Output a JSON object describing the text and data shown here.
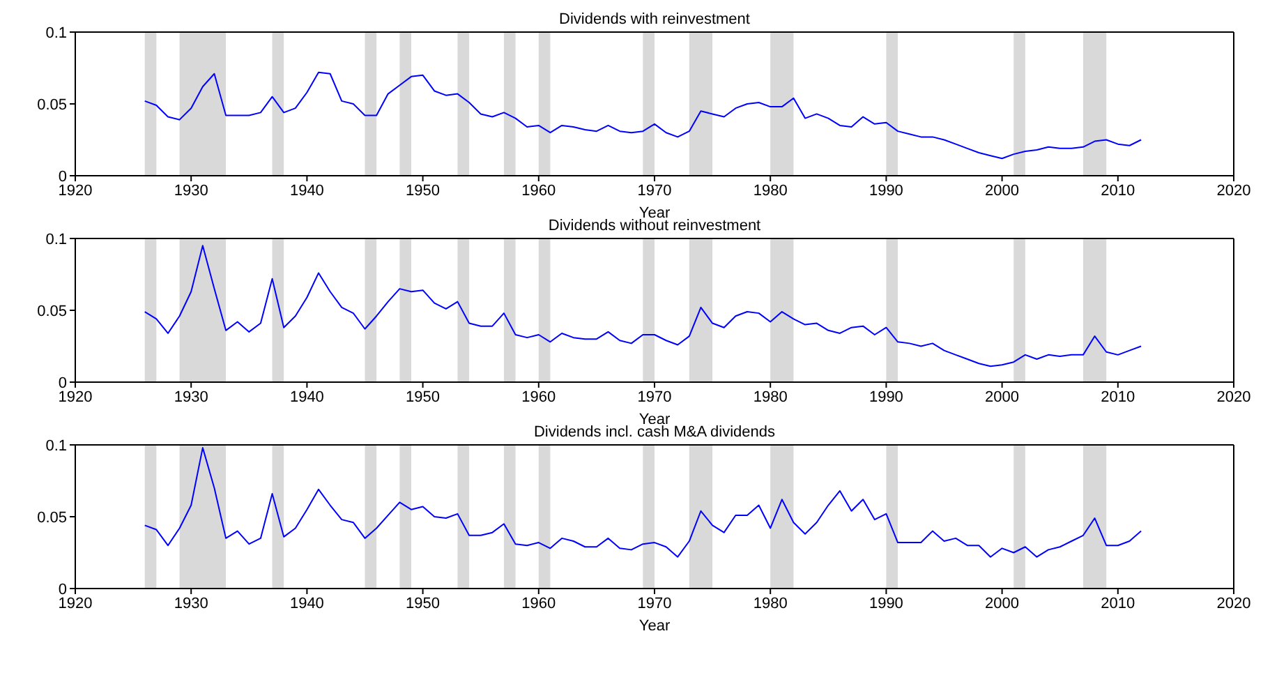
{
  "chart_data": [
    {
      "type": "line",
      "title": "Dividends with reinvestment",
      "xlabel": "Year",
      "xlim": [
        1920,
        2020
      ],
      "xticks": [
        1920,
        1930,
        1940,
        1950,
        1960,
        1970,
        1980,
        1990,
        2000,
        2010,
        2020
      ],
      "ylim": [
        0,
        0.1
      ],
      "yticks": [
        0,
        0.05,
        0.1
      ],
      "grid": false,
      "legend": false,
      "x": [
        1926,
        1927,
        1928,
        1929,
        1930,
        1931,
        1932,
        1933,
        1934,
        1935,
        1936,
        1937,
        1938,
        1939,
        1940,
        1941,
        1942,
        1943,
        1944,
        1945,
        1946,
        1947,
        1948,
        1949,
        1950,
        1951,
        1952,
        1953,
        1954,
        1955,
        1956,
        1957,
        1958,
        1959,
        1960,
        1961,
        1962,
        1963,
        1964,
        1965,
        1966,
        1967,
        1968,
        1969,
        1970,
        1971,
        1972,
        1973,
        1974,
        1975,
        1976,
        1977,
        1978,
        1979,
        1980,
        1981,
        1982,
        1983,
        1984,
        1985,
        1986,
        1987,
        1988,
        1989,
        1990,
        1991,
        1992,
        1993,
        1994,
        1995,
        1996,
        1997,
        1998,
        1999,
        2000,
        2001,
        2002,
        2003,
        2004,
        2005,
        2006,
        2007,
        2008,
        2009,
        2010,
        2011,
        2012
      ],
      "series": [
        {
          "color": "#0000ff",
          "values": [
            0.052,
            0.049,
            0.041,
            0.039,
            0.047,
            0.062,
            0.071,
            0.042,
            0.042,
            0.042,
            0.044,
            0.055,
            0.044,
            0.047,
            0.058,
            0.072,
            0.071,
            0.052,
            0.05,
            0.042,
            0.042,
            0.057,
            0.063,
            0.069,
            0.07,
            0.059,
            0.056,
            0.057,
            0.051,
            0.043,
            0.041,
            0.044,
            0.04,
            0.034,
            0.035,
            0.03,
            0.035,
            0.034,
            0.032,
            0.031,
            0.035,
            0.031,
            0.03,
            0.031,
            0.036,
            0.03,
            0.027,
            0.031,
            0.045,
            0.043,
            0.041,
            0.047,
            0.05,
            0.051,
            0.048,
            0.048,
            0.054,
            0.04,
            0.043,
            0.04,
            0.035,
            0.034,
            0.041,
            0.036,
            0.037,
            0.031,
            0.029,
            0.027,
            0.027,
            0.025,
            0.022,
            0.019,
            0.016,
            0.014,
            0.012,
            0.015,
            0.017,
            0.018,
            0.02,
            0.019,
            0.019,
            0.02,
            0.024,
            0.025,
            0.022,
            0.021,
            0.025
          ]
        }
      ],
      "bands": [
        {
          "axis": "x",
          "from": 1926,
          "to": 1927,
          "color": "#d9d9d9"
        },
        {
          "axis": "x",
          "from": 1929,
          "to": 1933,
          "color": "#d9d9d9"
        },
        {
          "axis": "x",
          "from": 1937,
          "to": 1938,
          "color": "#d9d9d9"
        },
        {
          "axis": "x",
          "from": 1945,
          "to": 1946,
          "color": "#d9d9d9"
        },
        {
          "axis": "x",
          "from": 1948,
          "to": 1949,
          "color": "#d9d9d9"
        },
        {
          "axis": "x",
          "from": 1953,
          "to": 1954,
          "color": "#d9d9d9"
        },
        {
          "axis": "x",
          "from": 1957,
          "to": 1958,
          "color": "#d9d9d9"
        },
        {
          "axis": "x",
          "from": 1960,
          "to": 1961,
          "color": "#d9d9d9"
        },
        {
          "axis": "x",
          "from": 1969,
          "to": 1970,
          "color": "#d9d9d9"
        },
        {
          "axis": "x",
          "from": 1973,
          "to": 1975,
          "color": "#d9d9d9"
        },
        {
          "axis": "x",
          "from": 1980,
          "to": 1982,
          "color": "#d9d9d9"
        },
        {
          "axis": "x",
          "from": 1990,
          "to": 1991,
          "color": "#d9d9d9"
        },
        {
          "axis": "x",
          "from": 2001,
          "to": 2002,
          "color": "#d9d9d9"
        },
        {
          "axis": "x",
          "from": 2007,
          "to": 2009,
          "color": "#d9d9d9"
        }
      ]
    },
    {
      "type": "line",
      "title": "Dividends without reinvestment",
      "xlabel": "Year",
      "xlim": [
        1920,
        2020
      ],
      "xticks": [
        1920,
        1930,
        1940,
        1950,
        1960,
        1970,
        1980,
        1990,
        2000,
        2010,
        2020
      ],
      "ylim": [
        0,
        0.1
      ],
      "yticks": [
        0,
        0.05,
        0.1
      ],
      "grid": false,
      "legend": false,
      "x": [
        1926,
        1927,
        1928,
        1929,
        1930,
        1931,
        1932,
        1933,
        1934,
        1935,
        1936,
        1937,
        1938,
        1939,
        1940,
        1941,
        1942,
        1943,
        1944,
        1945,
        1946,
        1947,
        1948,
        1949,
        1950,
        1951,
        1952,
        1953,
        1954,
        1955,
        1956,
        1957,
        1958,
        1959,
        1960,
        1961,
        1962,
        1963,
        1964,
        1965,
        1966,
        1967,
        1968,
        1969,
        1970,
        1971,
        1972,
        1973,
        1974,
        1975,
        1976,
        1977,
        1978,
        1979,
        1980,
        1981,
        1982,
        1983,
        1984,
        1985,
        1986,
        1987,
        1988,
        1989,
        1990,
        1991,
        1992,
        1993,
        1994,
        1995,
        1996,
        1997,
        1998,
        1999,
        2000,
        2001,
        2002,
        2003,
        2004,
        2005,
        2006,
        2007,
        2008,
        2009,
        2010,
        2011,
        2012
      ],
      "series": [
        {
          "color": "#0000ff",
          "values": [
            0.049,
            0.044,
            0.034,
            0.046,
            0.063,
            0.095,
            0.065,
            0.036,
            0.042,
            0.035,
            0.041,
            0.072,
            0.038,
            0.046,
            0.059,
            0.076,
            0.063,
            0.052,
            0.048,
            0.037,
            0.046,
            0.056,
            0.065,
            0.063,
            0.064,
            0.055,
            0.051,
            0.056,
            0.041,
            0.039,
            0.039,
            0.048,
            0.033,
            0.031,
            0.033,
            0.028,
            0.034,
            0.031,
            0.03,
            0.03,
            0.035,
            0.029,
            0.027,
            0.033,
            0.033,
            0.029,
            0.026,
            0.032,
            0.052,
            0.041,
            0.038,
            0.046,
            0.049,
            0.048,
            0.042,
            0.049,
            0.044,
            0.04,
            0.041,
            0.036,
            0.034,
            0.038,
            0.039,
            0.033,
            0.038,
            0.028,
            0.027,
            0.025,
            0.027,
            0.022,
            0.019,
            0.016,
            0.013,
            0.011,
            0.012,
            0.014,
            0.019,
            0.016,
            0.019,
            0.018,
            0.019,
            0.019,
            0.032,
            0.021,
            0.019,
            0.022,
            0.025
          ]
        }
      ],
      "bands": [
        {
          "axis": "x",
          "from": 1926,
          "to": 1927,
          "color": "#d9d9d9"
        },
        {
          "axis": "x",
          "from": 1929,
          "to": 1933,
          "color": "#d9d9d9"
        },
        {
          "axis": "x",
          "from": 1937,
          "to": 1938,
          "color": "#d9d9d9"
        },
        {
          "axis": "x",
          "from": 1945,
          "to": 1946,
          "color": "#d9d9d9"
        },
        {
          "axis": "x",
          "from": 1948,
          "to": 1949,
          "color": "#d9d9d9"
        },
        {
          "axis": "x",
          "from": 1953,
          "to": 1954,
          "color": "#d9d9d9"
        },
        {
          "axis": "x",
          "from": 1957,
          "to": 1958,
          "color": "#d9d9d9"
        },
        {
          "axis": "x",
          "from": 1960,
          "to": 1961,
          "color": "#d9d9d9"
        },
        {
          "axis": "x",
          "from": 1969,
          "to": 1970,
          "color": "#d9d9d9"
        },
        {
          "axis": "x",
          "from": 1973,
          "to": 1975,
          "color": "#d9d9d9"
        },
        {
          "axis": "x",
          "from": 1980,
          "to": 1982,
          "color": "#d9d9d9"
        },
        {
          "axis": "x",
          "from": 1990,
          "to": 1991,
          "color": "#d9d9d9"
        },
        {
          "axis": "x",
          "from": 2001,
          "to": 2002,
          "color": "#d9d9d9"
        },
        {
          "axis": "x",
          "from": 2007,
          "to": 2009,
          "color": "#d9d9d9"
        }
      ]
    },
    {
      "type": "line",
      "title": "Dividends incl. cash M&A dividends",
      "xlabel": "Year",
      "xlim": [
        1920,
        2020
      ],
      "xticks": [
        1920,
        1930,
        1940,
        1950,
        1960,
        1970,
        1980,
        1990,
        2000,
        2010,
        2020
      ],
      "ylim": [
        0,
        0.1
      ],
      "yticks": [
        0,
        0.05,
        0.1
      ],
      "grid": false,
      "legend": false,
      "x": [
        1926,
        1927,
        1928,
        1929,
        1930,
        1931,
        1932,
        1933,
        1934,
        1935,
        1936,
        1937,
        1938,
        1939,
        1940,
        1941,
        1942,
        1943,
        1944,
        1945,
        1946,
        1947,
        1948,
        1949,
        1950,
        1951,
        1952,
        1953,
        1954,
        1955,
        1956,
        1957,
        1958,
        1959,
        1960,
        1961,
        1962,
        1963,
        1964,
        1965,
        1966,
        1967,
        1968,
        1969,
        1970,
        1971,
        1972,
        1973,
        1974,
        1975,
        1976,
        1977,
        1978,
        1979,
        1980,
        1981,
        1982,
        1983,
        1984,
        1985,
        1986,
        1987,
        1988,
        1989,
        1990,
        1991,
        1992,
        1993,
        1994,
        1995,
        1996,
        1997,
        1998,
        1999,
        2000,
        2001,
        2002,
        2003,
        2004,
        2005,
        2006,
        2007,
        2008,
        2009,
        2010,
        2011,
        2012
      ],
      "series": [
        {
          "color": "#0000ff",
          "values": [
            0.044,
            0.041,
            0.03,
            0.042,
            0.058,
            0.098,
            0.07,
            0.035,
            0.04,
            0.031,
            0.035,
            0.066,
            0.036,
            0.042,
            0.055,
            0.069,
            0.058,
            0.048,
            0.046,
            0.035,
            0.042,
            0.051,
            0.06,
            0.055,
            0.057,
            0.05,
            0.049,
            0.052,
            0.037,
            0.037,
            0.039,
            0.045,
            0.031,
            0.03,
            0.032,
            0.028,
            0.035,
            0.033,
            0.029,
            0.029,
            0.035,
            0.028,
            0.027,
            0.031,
            0.032,
            0.029,
            0.022,
            0.033,
            0.054,
            0.044,
            0.039,
            0.051,
            0.051,
            0.058,
            0.042,
            0.062,
            0.046,
            0.038,
            0.046,
            0.058,
            0.068,
            0.054,
            0.062,
            0.048,
            0.052,
            0.032,
            0.032,
            0.032,
            0.04,
            0.033,
            0.035,
            0.03,
            0.03,
            0.022,
            0.028,
            0.025,
            0.029,
            0.022,
            0.027,
            0.029,
            0.033,
            0.037,
            0.049,
            0.03,
            0.03,
            0.033,
            0.04
          ]
        }
      ],
      "bands": [
        {
          "axis": "x",
          "from": 1926,
          "to": 1927,
          "color": "#d9d9d9"
        },
        {
          "axis": "x",
          "from": 1929,
          "to": 1933,
          "color": "#d9d9d9"
        },
        {
          "axis": "x",
          "from": 1937,
          "to": 1938,
          "color": "#d9d9d9"
        },
        {
          "axis": "x",
          "from": 1945,
          "to": 1946,
          "color": "#d9d9d9"
        },
        {
          "axis": "x",
          "from": 1948,
          "to": 1949,
          "color": "#d9d9d9"
        },
        {
          "axis": "x",
          "from": 1953,
          "to": 1954,
          "color": "#d9d9d9"
        },
        {
          "axis": "x",
          "from": 1957,
          "to": 1958,
          "color": "#d9d9d9"
        },
        {
          "axis": "x",
          "from": 1960,
          "to": 1961,
          "color": "#d9d9d9"
        },
        {
          "axis": "x",
          "from": 1969,
          "to": 1970,
          "color": "#d9d9d9"
        },
        {
          "axis": "x",
          "from": 1973,
          "to": 1975,
          "color": "#d9d9d9"
        },
        {
          "axis": "x",
          "from": 1980,
          "to": 1982,
          "color": "#d9d9d9"
        },
        {
          "axis": "x",
          "from": 1990,
          "to": 1991,
          "color": "#d9d9d9"
        },
        {
          "axis": "x",
          "from": 2001,
          "to": 2002,
          "color": "#d9d9d9"
        },
        {
          "axis": "x",
          "from": 2007,
          "to": 2009,
          "color": "#d9d9d9"
        }
      ]
    }
  ]
}
